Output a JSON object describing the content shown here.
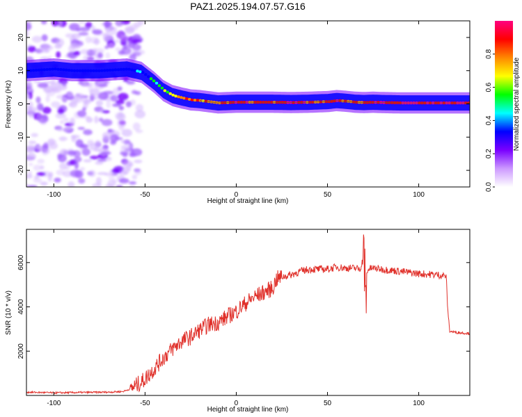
{
  "figure_title": "PAZ1.2025.194.07.57.G16",
  "chart_data": [
    {
      "type": "heatmap",
      "xlabel": "Height of straight line (km)",
      "ylabel": "Frequency (Hz)",
      "xlim": [
        -115,
        128
      ],
      "ylim": [
        -25,
        25
      ],
      "x_ticks": [
        -100,
        -50,
        0,
        50,
        100
      ],
      "y_ticks": [
        -20,
        -10,
        0,
        10,
        20
      ],
      "colorbar": {
        "label": "Normalized spectral amplitude",
        "range": [
          0,
          1
        ],
        "ticks": [
          0.0,
          0.2,
          0.4,
          0.6,
          0.8
        ],
        "colors": [
          "#ffffff",
          "#cc99ff",
          "#7a00ff",
          "#0000ff",
          "#00ffff",
          "#00ff00",
          "#ffff00",
          "#ff8800",
          "#ff0000",
          "#ff0080"
        ]
      },
      "ridge": {
        "x": [
          -115,
          -100,
          -90,
          -75,
          -60,
          -52,
          -45,
          -40,
          -35,
          -30,
          -25,
          -20,
          -10,
          0,
          10,
          20,
          30,
          40,
          50,
          55,
          60,
          65,
          70,
          75,
          80,
          90,
          100,
          110,
          120,
          128
        ],
        "y": [
          10,
          10.5,
          10,
          10,
          10.5,
          9.5,
          6.5,
          4,
          2.5,
          1.8,
          1.2,
          1.0,
          0.3,
          0.5,
          0.5,
          0.5,
          0.4,
          0.5,
          0.7,
          1.0,
          0.8,
          0.5,
          0.4,
          0.5,
          0.4,
          0.3,
          0.3,
          0.3,
          0.3,
          0.3
        ],
        "amplitude": [
          0.25,
          0.2,
          0.2,
          0.2,
          0.3,
          0.4,
          0.5,
          0.6,
          0.7,
          0.8,
          0.85,
          0.8,
          0.85,
          0.9,
          0.85,
          0.9,
          0.9,
          0.9,
          0.85,
          0.9,
          0.85,
          0.8,
          0.85,
          0.95,
          0.95,
          0.95,
          0.95,
          0.95,
          0.95,
          0.95
        ]
      },
      "noise_region": {
        "x_range": [
          -115,
          -52
        ],
        "y_range": [
          -25,
          25
        ]
      }
    },
    {
      "type": "line",
      "xlabel": "Height of straight line (km)",
      "ylabel": "SNR (10 * v/v)",
      "xlim": [
        -115,
        128
      ],
      "ylim": [
        0,
        7500
      ],
      "x_ticks": [
        -100,
        -50,
        0,
        50,
        100
      ],
      "y_ticks": [
        2000,
        4000,
        6000
      ],
      "series": [
        {
          "color": "#e0302a",
          "x": [
            -115,
            -100,
            -90,
            -80,
            -70,
            -62,
            -58,
            -55,
            -52,
            -50,
            -45,
            -40,
            -35,
            -30,
            -25,
            -20,
            -15,
            -10,
            -5,
            0,
            5,
            10,
            15,
            20,
            22,
            25,
            30,
            35,
            40,
            45,
            50,
            55,
            60,
            65,
            68,
            70,
            71,
            72,
            75,
            80,
            90,
            100,
            110,
            115,
            116,
            117,
            120,
            128
          ],
          "y": [
            150,
            120,
            130,
            140,
            150,
            180,
            300,
            450,
            600,
            750,
            1200,
            1700,
            2100,
            2450,
            2650,
            2950,
            3200,
            3300,
            3550,
            3800,
            4150,
            4450,
            4650,
            4850,
            5250,
            5350,
            5450,
            5600,
            5700,
            5700,
            5700,
            5800,
            5750,
            5750,
            5700,
            6500,
            4000,
            5700,
            5750,
            5700,
            5600,
            5500,
            5450,
            5400,
            3800,
            2900,
            2850,
            2800
          ]
        }
      ]
    }
  ]
}
